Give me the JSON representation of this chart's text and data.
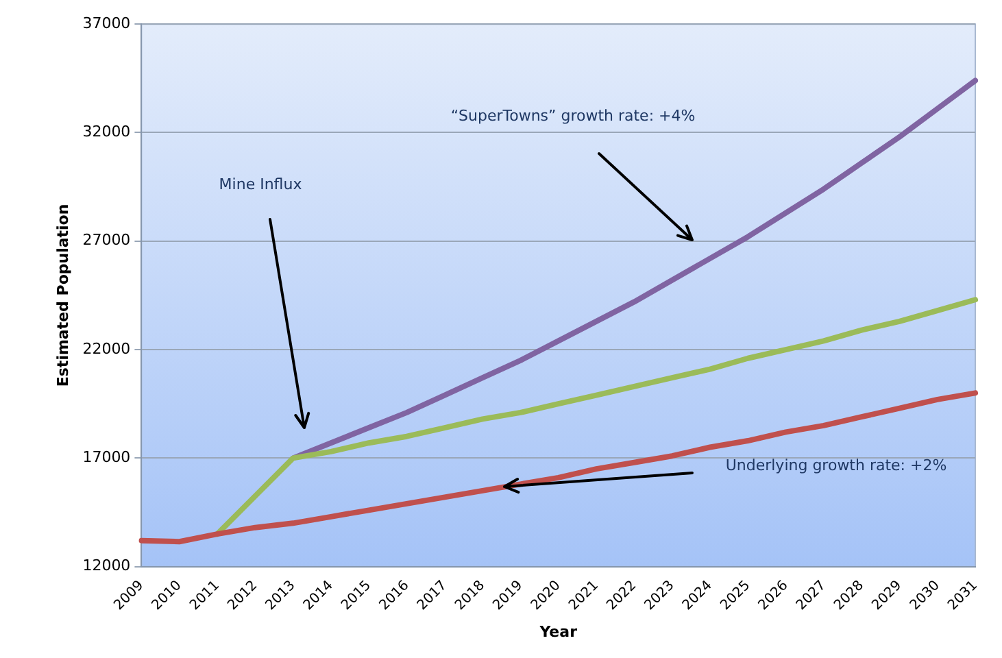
{
  "chart_data": {
    "type": "line",
    "xlabel": "Year",
    "ylabel": "Estimated Population",
    "categories": [
      "2009",
      "2010",
      "2011",
      "2012",
      "2013",
      "2014",
      "2015",
      "2016",
      "2017",
      "2018",
      "2019",
      "2020",
      "2021",
      "2022",
      "2023",
      "2024",
      "2025",
      "2026",
      "2027",
      "2028",
      "2029",
      "2030",
      "2031"
    ],
    "series": [
      {
        "color": "#c0504d",
        "values": [
          13200,
          13150,
          13500,
          13800,
          14000,
          14300,
          14600,
          14900,
          15200,
          15500,
          15800,
          16100,
          16500,
          16800,
          17100,
          17500,
          17800,
          18200,
          18500,
          18900,
          19300,
          19700,
          20000
        ]
      },
      {
        "color": "#9bbb59",
        "values": [
          null,
          null,
          13500,
          15250,
          17000,
          17300,
          17700,
          18000,
          18400,
          18800,
          19100,
          19500,
          19900,
          20300,
          20700,
          21100,
          21600,
          22000,
          22400,
          22900,
          23300,
          23800,
          24300
        ]
      },
      {
        "color": "#8064a2",
        "values": [
          null,
          null,
          null,
          null,
          17000,
          17700,
          18400,
          19100,
          19900,
          20700,
          21500,
          22400,
          23300,
          24200,
          25200,
          26200,
          27200,
          28300,
          29400,
          30600,
          31800,
          33100,
          34400
        ]
      }
    ],
    "ylim": [
      12000,
      37000
    ],
    "yticks": [
      12000,
      17000,
      22000,
      27000,
      32000,
      37000
    ],
    "grid": "y",
    "legend": false,
    "marker": "none",
    "line_style": "solid",
    "annotations": [
      "Mine Influx",
      "“SuperTowns” growth rate: +4%",
      "Underlying growth rate: +2%"
    ]
  }
}
